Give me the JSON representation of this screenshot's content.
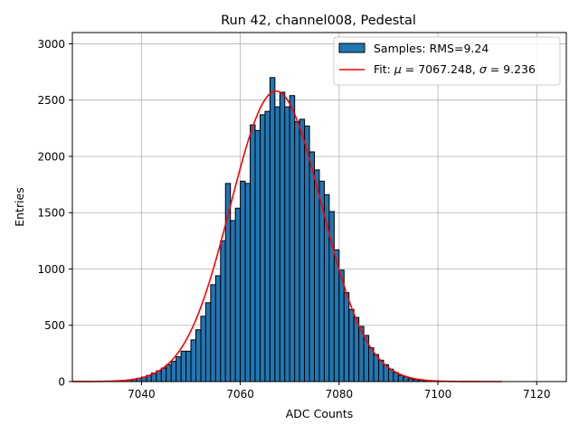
{
  "chart_data": {
    "type": "bar",
    "title": "Run 42, channel008, Pedestal",
    "xlabel": "ADC Counts",
    "ylabel": "Entries",
    "xlim": [
      7026,
      7126
    ],
    "ylim": [
      0,
      3100
    ],
    "xticks": [
      7040,
      7060,
      7080,
      7100,
      7120
    ],
    "yticks": [
      0,
      500,
      1000,
      1500,
      2000,
      2500,
      3000
    ],
    "grid": true,
    "legend_position": "top-right",
    "colors": {
      "bar_fill": "#1f77b4",
      "bar_edge": "#000000",
      "fit_line": "#ff0000",
      "grid": "#b0b0b0"
    },
    "histogram": {
      "name": "Samples: RMS=9.24",
      "bin_starts": [
        7036,
        7037,
        7038,
        7039,
        7040,
        7041,
        7042,
        7043,
        7044,
        7045,
        7046,
        7047,
        7048,
        7049,
        7050,
        7051,
        7052,
        7053,
        7054,
        7055,
        7056,
        7057,
        7058,
        7059,
        7060,
        7061,
        7062,
        7063,
        7064,
        7065,
        7066,
        7067,
        7068,
        7069,
        7070,
        7071,
        7072,
        7073,
        7074,
        7075,
        7076,
        7077,
        7078,
        7079,
        7080,
        7081,
        7082,
        7083,
        7084,
        7085,
        7086,
        7087,
        7088,
        7089,
        7090,
        7091,
        7092,
        7093,
        7094,
        7095,
        7096,
        7097,
        7098,
        7099,
        7100
      ],
      "counts": [
        10,
        15,
        20,
        30,
        40,
        55,
        75,
        95,
        120,
        150,
        180,
        220,
        270,
        270,
        370,
        460,
        580,
        700,
        860,
        940,
        1250,
        1760,
        1430,
        1540,
        1780,
        1760,
        2280,
        2230,
        2370,
        2400,
        2700,
        2440,
        2570,
        2440,
        2540,
        2310,
        2330,
        2270,
        2040,
        1880,
        1780,
        1660,
        1510,
        1170,
        990,
        790,
        640,
        570,
        490,
        410,
        300,
        240,
        190,
        150,
        110,
        80,
        55,
        40,
        25,
        18,
        12,
        8,
        5,
        3,
        2
      ],
      "bin_width": 1
    },
    "fit": {
      "name": "Fit: μ = 7067.248, σ = 9.236",
      "mu": 7067.248,
      "sigma": 9.236,
      "amplitude": 2580,
      "x_range": [
        7026,
        7113
      ]
    }
  },
  "legend": {
    "samples_label": "Samples: RMS=9.24",
    "fit_label_prefix": "Fit: ",
    "fit_mu_symbol": "μ",
    "fit_mu_value": " = 7067.248, ",
    "fit_sigma_symbol": "σ",
    "fit_sigma_value": " = 9.236"
  }
}
